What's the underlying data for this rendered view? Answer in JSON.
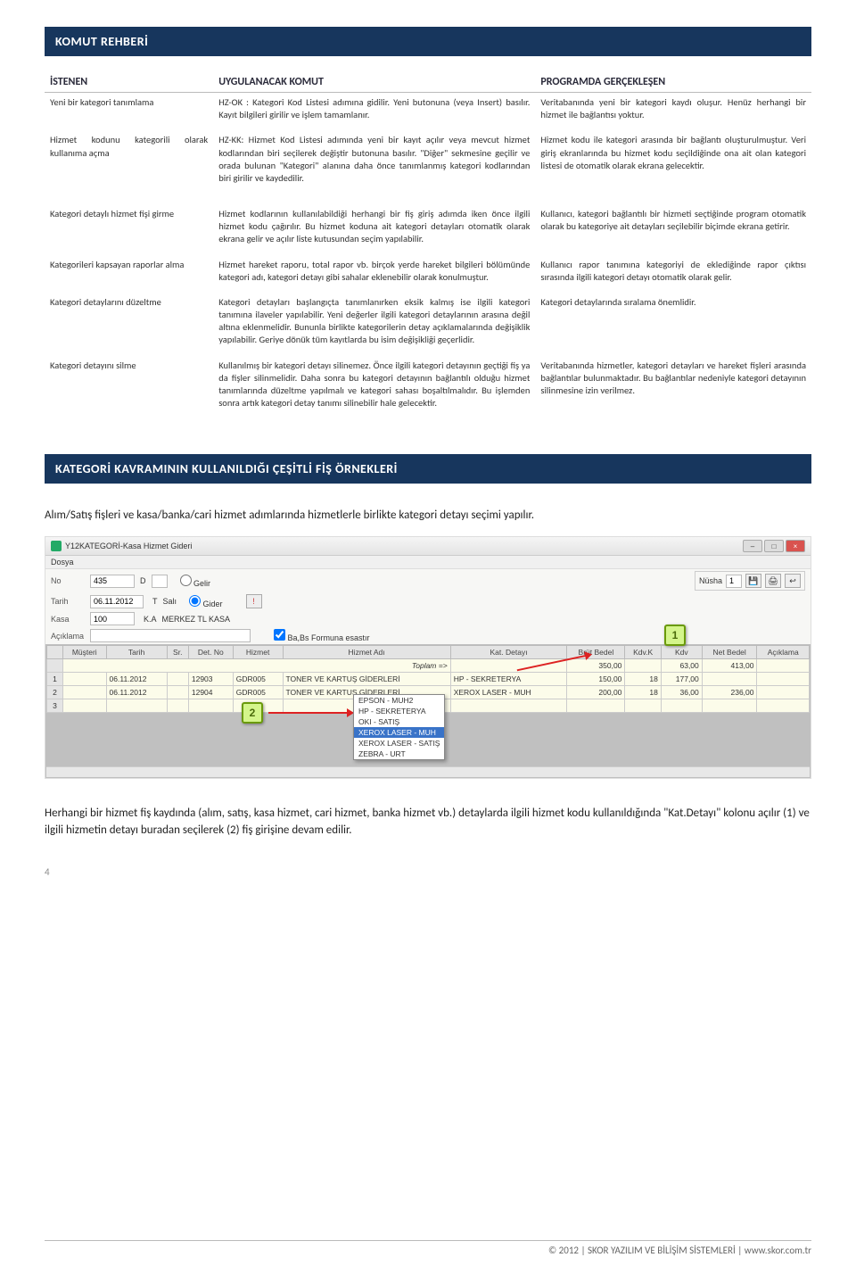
{
  "header1": "KOMUT REHBERİ",
  "table": {
    "headers": [
      "İSTENEN",
      "UYGULANACAK KOMUT",
      "PROGRAMDA GERÇEKLEŞEN"
    ],
    "rows": [
      {
        "c1": "Yeni bir kategori tanımlama",
        "c2": "HZ-OK : Kategori Kod Listesi adımına gidilir. Yeni butonuna (veya Insert) basılır. Kayıt bilgileri girilir ve işlem tamamlanır.",
        "c3": "Veritabanında yeni bir kategori kaydı oluşur. Henüz herhangi bir hizmet ile bağlantısı yoktur."
      },
      {
        "c1": "Hizmet kodunu kategorili olarak kullanıma açma",
        "c2": "HZ-KK: Hizmet Kod Listesi adımında yeni bir kayıt açılır veya mevcut hizmet kodlarından biri seçilerek değiştir butonuna basılır. \"Diğer\" sekmesine geçilir ve orada bulunan \"Kategori\" alanına daha önce tanımlanmış kategori kodlarından biri girilir ve kaydedilir.",
        "c3": "Hizmet kodu ile kategori arasında bir bağlantı oluşturulmuştur. Veri giriş ekranlarında bu hizmet kodu seçildiğinde ona ait olan kategori listesi de otomatik olarak ekrana gelecektir."
      },
      {
        "c1": "Kategori detaylı hizmet fişi girme",
        "c2": "Hizmet kodlarının kullanılabildiği herhangi bir fiş giriş adımda iken önce ilgili hizmet kodu çağırılır. Bu hizmet koduna ait kategori detayları otomatik olarak ekrana gelir ve açılır liste kutusundan seçim yapılabilir.",
        "c3": "Kullanıcı, kategori bağlantılı bir hizmeti seçtiğinde program otomatik olarak bu kategoriye ait detayları seçilebilir biçimde ekrana getirir."
      },
      {
        "c1": "Kategorileri kapsayan raporlar alma",
        "c2": "Hizmet hareket raporu, total rapor vb. birçok yerde hareket bilgileri bölümünde kategori adı, kategori detayı gibi sahalar eklenebilir olarak konulmuştur.",
        "c3": "Kullanıcı rapor tanımına kategoriyi de eklediğinde rapor çıktısı sırasında ilgili kategori detayı otomatik olarak gelir."
      },
      {
        "c1": "Kategori detaylarını düzeltme",
        "c2": "Kategori detayları başlangıçta tanımlanırken eksik kalmış ise ilgili kategori tanımına ilaveler yapılabilir. Yeni değerler ilgili kategori detaylarının arasına değil altına eklenmelidir. Bununla birlikte kategorilerin detay açıklamalarında değişiklik yapılabilir. Geriye dönük tüm kayıtlarda bu isim değişikliği geçerlidir.",
        "c3": "Kategori detaylarında sıralama önemlidir."
      },
      {
        "c1": "Kategori detayını silme",
        "c2": "Kullanılmış bir kategori detayı silinemez. Önce ilgili kategori detayının geçtiği fiş ya da fişler silinmelidir. Daha sonra bu kategori detayının bağlantılı olduğu hizmet tanımlarında düzeltme yapılmalı ve kategori sahası boşaltılmalıdır. Bu işlemden sonra artık kategori detay tanımı silinebilir hale gelecektir.",
        "c3": "Veritabanında hizmetler, kategori detayları ve hareket fişleri arasında bağlantılar bulunmaktadır. Bu bağlantılar nedeniyle kategori detayının silinmesine izin verilmez."
      }
    ]
  },
  "header2": "KATEGORİ KAVRAMININ KULLANILDIĞI ÇEŞİTLİ FİŞ ÖRNEKLERİ",
  "intro": "Alım/Satış fişleri ve kasa/banka/cari hizmet adımlarında hizmetlerle birlikte kategori detayı seçimi yapılır.",
  "sshot": {
    "title": "Y12KATEGORİ-Kasa Hizmet Gideri",
    "menu": "Dosya",
    "no_lbl": "No",
    "no_val": "435",
    "d_lbl": "D",
    "gelir": "Gelir",
    "gider": "Gider",
    "tarih_lbl": "Tarih",
    "tarih_val": "06.11.2012",
    "t_lbl": "T",
    "gun": "Salı",
    "kasa_lbl": "Kasa",
    "kasa_val": "100",
    "ka_lbl": "K.A",
    "kasa_ad": "MERKEZ TL KASA",
    "aciklama_lbl": "Açıklama",
    "chk_lbl": "Ba,Bs Formuna esastır",
    "nusha_lbl": "Nüsha",
    "nusha_val": "1",
    "cols": [
      "",
      "Müşteri",
      "Tarih",
      "Sr.",
      "Det. No",
      "Hizmet",
      "Hizmet Adı",
      "Kat. Detayı",
      "Brüt Bedel",
      "Kdv.K",
      "Kdv",
      "Net Bedel",
      "Açıklama"
    ],
    "toplam_lbl": "Toplam =>",
    "totals": {
      "brut": "350,00",
      "kdv": "63,00",
      "net": "413,00"
    },
    "rows": [
      {
        "n": "1",
        "tarih": "06.11.2012",
        "det": "12903",
        "hz": "GDR005",
        "had": "TONER VE KARTUŞ GİDERLERİ",
        "kd": "HP - SEKRETERYA",
        "brut": "150,00",
        "kk": "18",
        "kdv": "177,00",
        "net": ""
      },
      {
        "n": "2",
        "tarih": "06.11.2012",
        "det": "12904",
        "hz": "GDR005",
        "had": "TONER VE KARTUŞ GİDERLERİ",
        "kd": "XEROX LASER - MUH",
        "brut": "200,00",
        "kk": "18",
        "kdv": "36,00",
        "net": "236,00"
      },
      {
        "n": "3"
      }
    ],
    "dropdown": [
      "EPSON - MUH2",
      "HP - SEKRETERYA",
      "OKI - SATIŞ",
      "XEROX LASER - MUH",
      "XEROX LASER - SATIŞ",
      "ZEBRA - URT"
    ],
    "dropdown_sel_idx": 3
  },
  "callouts": {
    "one": "1",
    "two": "2"
  },
  "body2": "Herhangi bir hizmet fiş kaydında (alım, satış, kasa hizmet, cari hizmet, banka hizmet vb.) detaylarda ilgili hizmet kodu kullanıldığında \"Kat.Detayı\" kolonu açılır (1) ve ilgili hizmetin detayı buradan seçilerek (2) fiş girişine devam edilir.",
  "page_num": "4",
  "footer": "© 2012   | SKOR YAZILIM VE BİLİŞİM SİSTEMLERİ | www.skor.com.tr"
}
